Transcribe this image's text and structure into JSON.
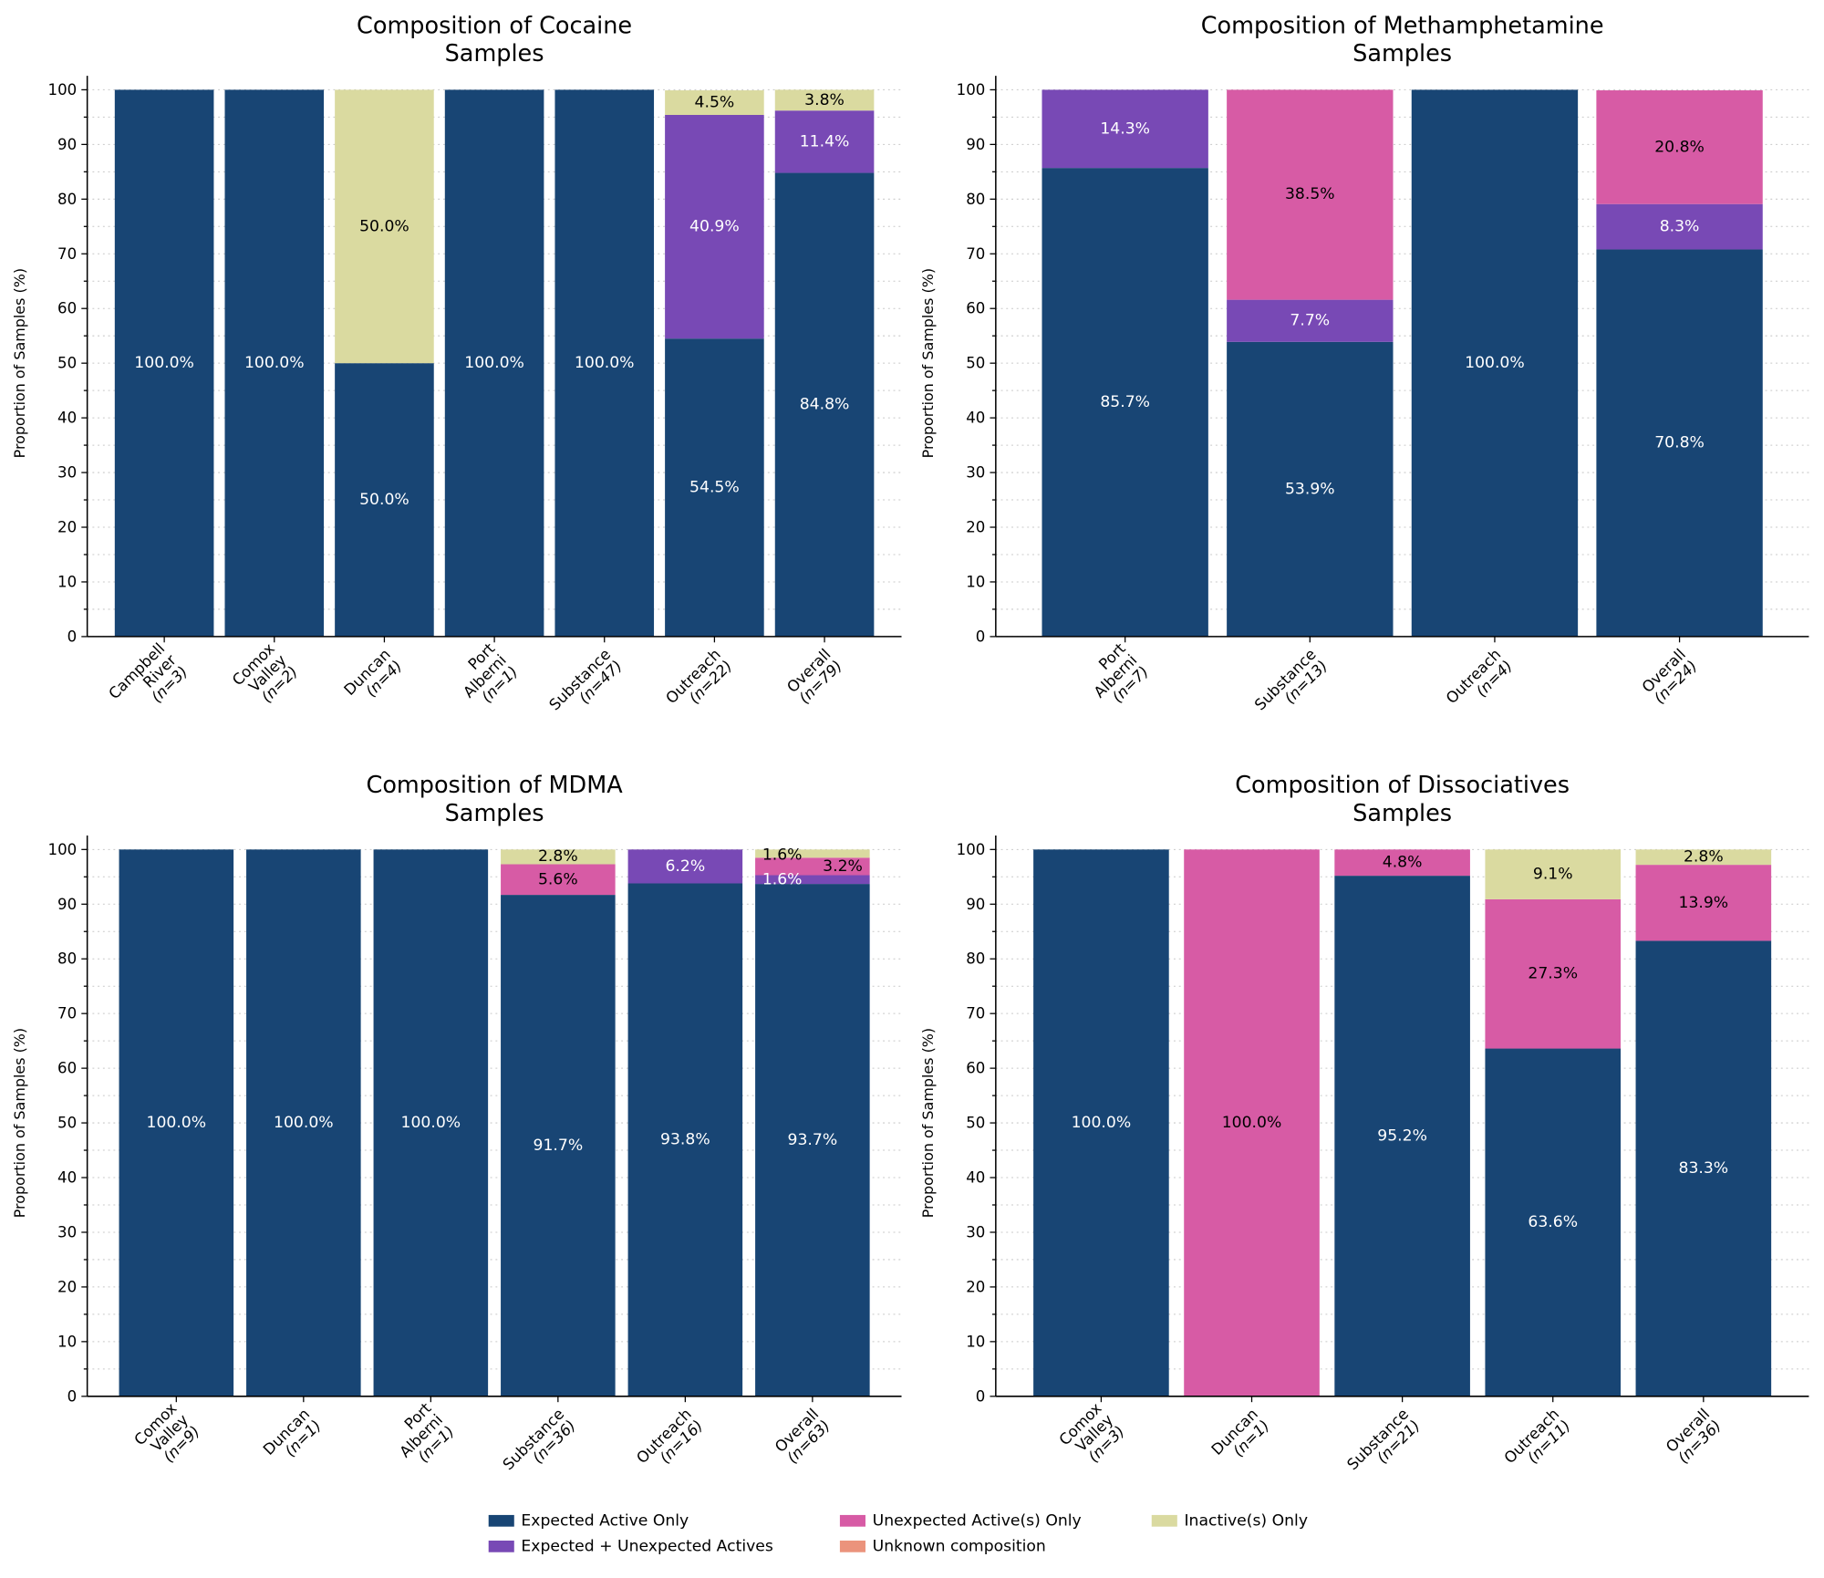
{
  "colors": {
    "Expected Active Only": "#184574",
    "Expected + Unexpected Actives": "#7849b5",
    "Unexpected Active(s) Only": "#d75ba5",
    "Unknown composition": "#eb937c",
    "Inactive(s) Only": "#dadaa0"
  },
  "legend": {
    "entries": [
      "Expected Active Only",
      "Expected + Unexpected Actives",
      "Unexpected Active(s) Only",
      "Unknown composition",
      "Inactive(s) Only"
    ],
    "placement": "bottom-center"
  },
  "chart_data": [
    {
      "type": "bar",
      "stacked": true,
      "title": [
        "Composition of Cocaine",
        "Samples"
      ],
      "ylabel": "Proportion of Samples (%)",
      "ylim": [
        0,
        100
      ],
      "yticks": [
        0,
        10,
        20,
        30,
        40,
        50,
        60,
        70,
        80,
        90,
        100
      ],
      "grid": true,
      "categories": [
        [
          "Campbell",
          "River",
          "(n=3)"
        ],
        [
          "Comox",
          "Valley",
          "(n=2)"
        ],
        [
          "Duncan",
          "(n=4)"
        ],
        [
          "Port",
          "Alberni",
          "(n=1)"
        ],
        [
          "Substance",
          "(n=47)"
        ],
        [
          "Outreach",
          "(n=22)"
        ],
        [
          "Overall",
          "(n=79)"
        ]
      ],
      "series": [
        {
          "name": "Expected Active Only",
          "values": [
            100,
            100,
            50,
            100,
            100,
            54.5,
            84.8
          ]
        },
        {
          "name": "Expected + Unexpected Actives",
          "values": [
            0,
            0,
            0,
            0,
            0,
            40.9,
            11.4
          ]
        },
        {
          "name": "Unexpected Active(s) Only",
          "values": [
            0,
            0,
            0,
            0,
            0,
            0,
            0
          ]
        },
        {
          "name": "Unknown composition",
          "values": [
            0,
            0,
            0,
            0,
            0,
            0,
            0
          ]
        },
        {
          "name": "Inactive(s) Only",
          "values": [
            0,
            0,
            50,
            0,
            0,
            4.5,
            3.8
          ]
        }
      ]
    },
    {
      "type": "bar",
      "stacked": true,
      "title": [
        "Composition of Methamphetamine",
        "Samples"
      ],
      "ylabel": "Proportion of Samples (%)",
      "ylim": [
        0,
        100
      ],
      "yticks": [
        0,
        10,
        20,
        30,
        40,
        50,
        60,
        70,
        80,
        90,
        100
      ],
      "grid": true,
      "categories": [
        [
          "Port",
          "Alberni",
          "(n=7)"
        ],
        [
          "Substance",
          "(n=13)"
        ],
        [
          "Outreach",
          "(n=4)"
        ],
        [
          "Overall",
          "(n=24)"
        ]
      ],
      "series": [
        {
          "name": "Expected Active Only",
          "values": [
            85.7,
            53.9,
            100,
            70.8
          ]
        },
        {
          "name": "Expected + Unexpected Actives",
          "values": [
            14.3,
            7.7,
            0,
            8.3
          ]
        },
        {
          "name": "Unexpected Active(s) Only",
          "values": [
            0,
            38.5,
            0,
            20.8
          ]
        },
        {
          "name": "Unknown composition",
          "values": [
            0,
            0,
            0,
            0
          ]
        },
        {
          "name": "Inactive(s) Only",
          "values": [
            0,
            0,
            0,
            0
          ]
        }
      ]
    },
    {
      "type": "bar",
      "stacked": true,
      "title": [
        "Composition of MDMA",
        "Samples"
      ],
      "ylabel": "Proportion of Samples (%)",
      "ylim": [
        0,
        100
      ],
      "yticks": [
        0,
        10,
        20,
        30,
        40,
        50,
        60,
        70,
        80,
        90,
        100
      ],
      "grid": true,
      "categories": [
        [
          "Comox",
          "Valley",
          "(n=9)"
        ],
        [
          "Duncan",
          "(n=1)"
        ],
        [
          "Port",
          "Alberni",
          "(n=1)"
        ],
        [
          "Substance",
          "(n=36)"
        ],
        [
          "Outreach",
          "(n=16)"
        ],
        [
          "Overall",
          "(n=63)"
        ]
      ],
      "series": [
        {
          "name": "Expected Active Only",
          "values": [
            100,
            100,
            100,
            91.7,
            93.8,
            93.7
          ]
        },
        {
          "name": "Expected + Unexpected Actives",
          "values": [
            0,
            0,
            0,
            0,
            6.2,
            1.6
          ]
        },
        {
          "name": "Unexpected Active(s) Only",
          "values": [
            0,
            0,
            0,
            5.6,
            0,
            3.2
          ]
        },
        {
          "name": "Unknown composition",
          "values": [
            0,
            0,
            0,
            0,
            0,
            0
          ]
        },
        {
          "name": "Inactive(s) Only",
          "values": [
            0,
            0,
            0,
            2.8,
            0,
            1.6
          ]
        }
      ]
    },
    {
      "type": "bar",
      "stacked": true,
      "title": [
        "Composition of Dissociatives",
        "Samples"
      ],
      "ylabel": "Proportion of Samples (%)",
      "ylim": [
        0,
        100
      ],
      "yticks": [
        0,
        10,
        20,
        30,
        40,
        50,
        60,
        70,
        80,
        90,
        100
      ],
      "grid": true,
      "categories": [
        [
          "Comox",
          "Valley",
          "(n=3)"
        ],
        [
          "Duncan",
          "(n=1)"
        ],
        [
          "Substance",
          "(n=21)"
        ],
        [
          "Outreach",
          "(n=11)"
        ],
        [
          "Overall",
          "(n=36)"
        ]
      ],
      "series": [
        {
          "name": "Expected Active Only",
          "values": [
            100,
            0,
            95.2,
            63.6,
            83.3
          ]
        },
        {
          "name": "Expected + Unexpected Actives",
          "values": [
            0,
            0,
            0,
            0,
            0
          ]
        },
        {
          "name": "Unexpected Active(s) Only",
          "values": [
            0,
            100,
            4.8,
            27.3,
            13.9
          ]
        },
        {
          "name": "Unknown composition",
          "values": [
            0,
            0,
            0,
            0,
            0
          ]
        },
        {
          "name": "Inactive(s) Only",
          "values": [
            0,
            0,
            0,
            9.1,
            2.8
          ]
        }
      ]
    }
  ]
}
